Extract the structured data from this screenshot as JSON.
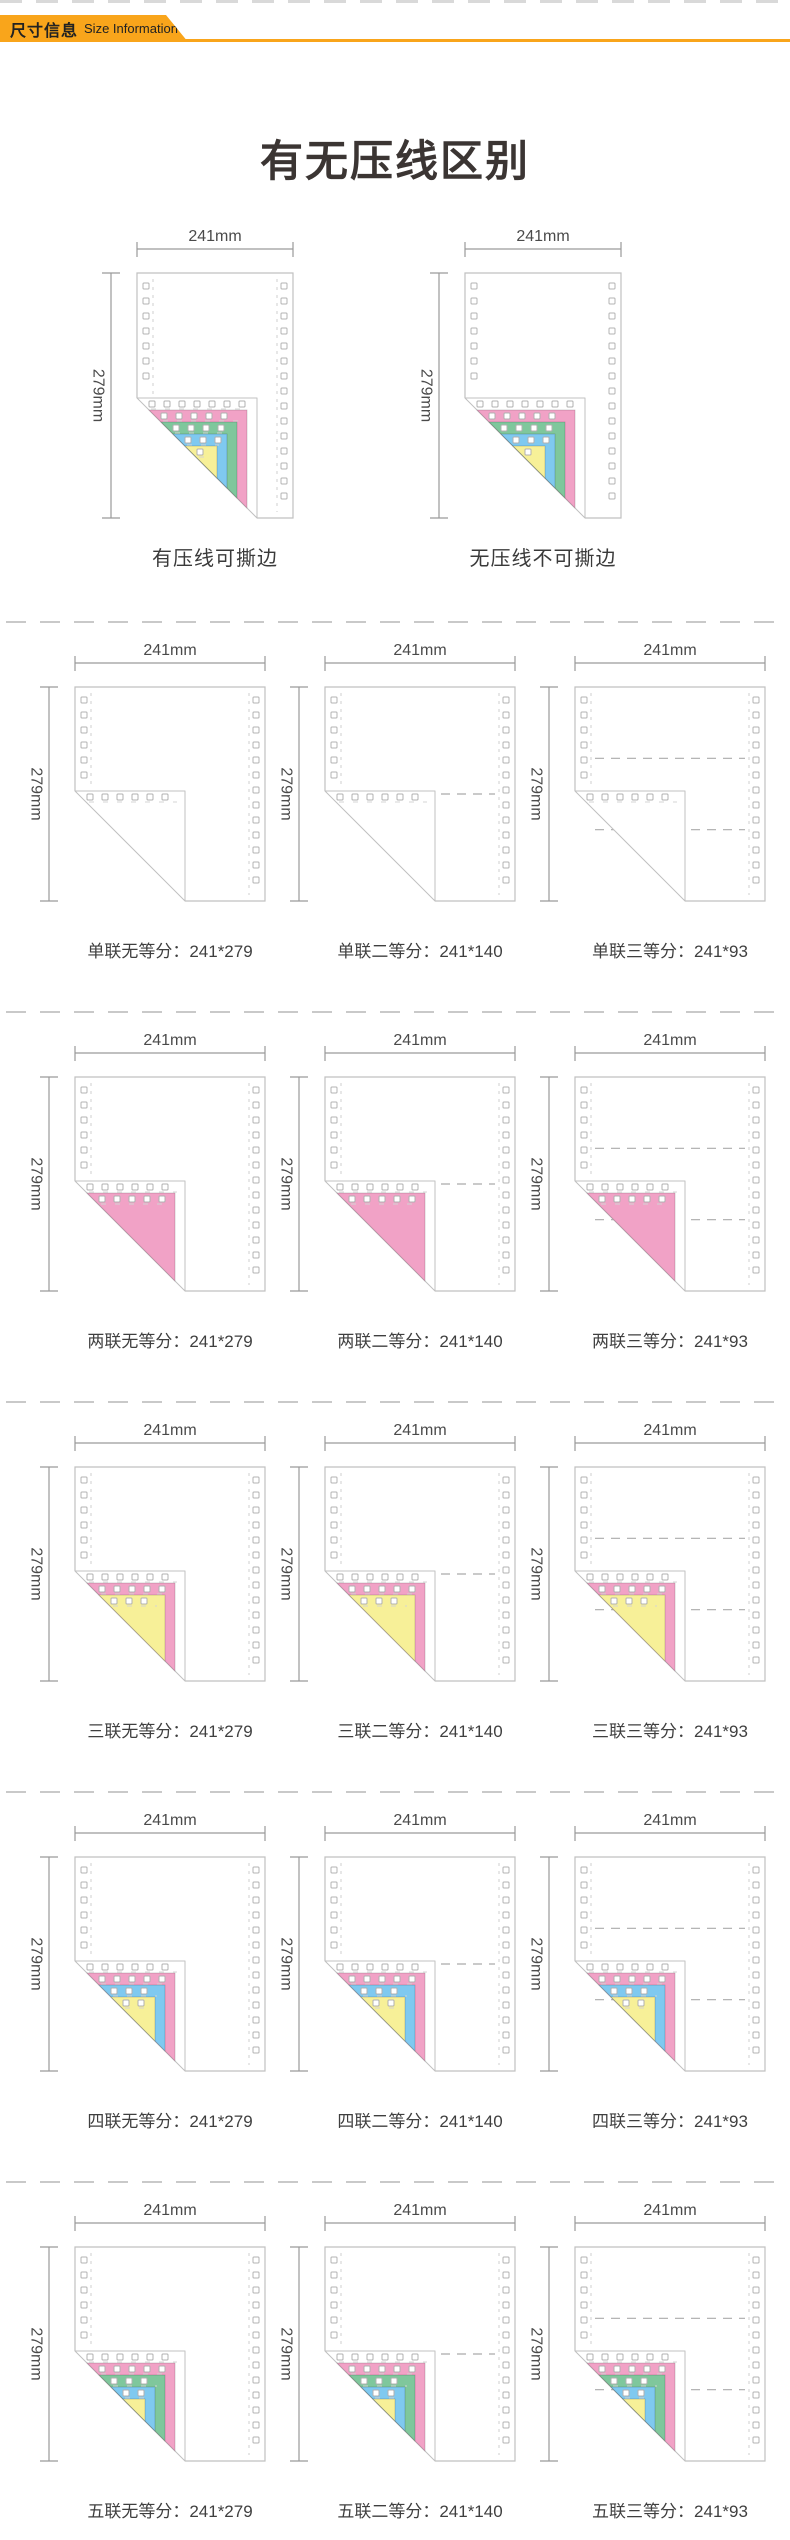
{
  "banner": {
    "title_zh": "尺寸信息",
    "title_en": "Size Information"
  },
  "page_title": "有无压线区别",
  "dims": {
    "width": "241mm",
    "height": "279mm"
  },
  "colors": {
    "banner_orange": "#F9A51B",
    "pink": "#F1A2C6",
    "green": "#7FC79C",
    "blue": "#7FC9F0",
    "yellow": "#F7F098",
    "paper_border": "#C0C0C0",
    "dash_gray": "#C9C9C9"
  },
  "ply_sequences": {
    "1": [],
    "2": [
      "pink"
    ],
    "3": [
      "pink",
      "yellow"
    ],
    "4": [
      "pink",
      "blue",
      "yellow"
    ],
    "5": [
      "pink",
      "green",
      "blue",
      "yellow"
    ]
  },
  "comparison": {
    "items": [
      {
        "label": "有压线可撕边",
        "plies": 5,
        "divisions": 0,
        "crease": true
      },
      {
        "label": "无压线不可撕边",
        "plies": 5,
        "divisions": 0,
        "crease": false
      }
    ]
  },
  "rows": [
    {
      "items": [
        {
          "label": "单联无等分：241*279",
          "plies": 1,
          "divisions": 0,
          "crease": true
        },
        {
          "label": "单联二等分：241*140",
          "plies": 1,
          "divisions": 1,
          "crease": true
        },
        {
          "label": "单联三等分：241*93",
          "plies": 1,
          "divisions": 2,
          "crease": true
        }
      ]
    },
    {
      "items": [
        {
          "label": "两联无等分：241*279",
          "plies": 2,
          "divisions": 0,
          "crease": true
        },
        {
          "label": "两联二等分：241*140",
          "plies": 2,
          "divisions": 1,
          "crease": true
        },
        {
          "label": "两联三等分：241*93",
          "plies": 2,
          "divisions": 2,
          "crease": true
        }
      ]
    },
    {
      "items": [
        {
          "label": "三联无等分：241*279",
          "plies": 3,
          "divisions": 0,
          "crease": true
        },
        {
          "label": "三联二等分：241*140",
          "plies": 3,
          "divisions": 1,
          "crease": true
        },
        {
          "label": "三联三等分：241*93",
          "plies": 3,
          "divisions": 2,
          "crease": true
        }
      ]
    },
    {
      "items": [
        {
          "label": "四联无等分：241*279",
          "plies": 4,
          "divisions": 0,
          "crease": true
        },
        {
          "label": "四联二等分：241*140",
          "plies": 4,
          "divisions": 1,
          "crease": true
        },
        {
          "label": "四联三等分：241*93",
          "plies": 4,
          "divisions": 2,
          "crease": true
        }
      ]
    },
    {
      "items": [
        {
          "label": "五联无等分：241*279",
          "plies": 5,
          "divisions": 0,
          "crease": true
        },
        {
          "label": "五联二等分：241*140",
          "plies": 5,
          "divisions": 1,
          "crease": true
        },
        {
          "label": "五联三等分：241*93",
          "plies": 5,
          "divisions": 2,
          "crease": true
        }
      ]
    }
  ]
}
